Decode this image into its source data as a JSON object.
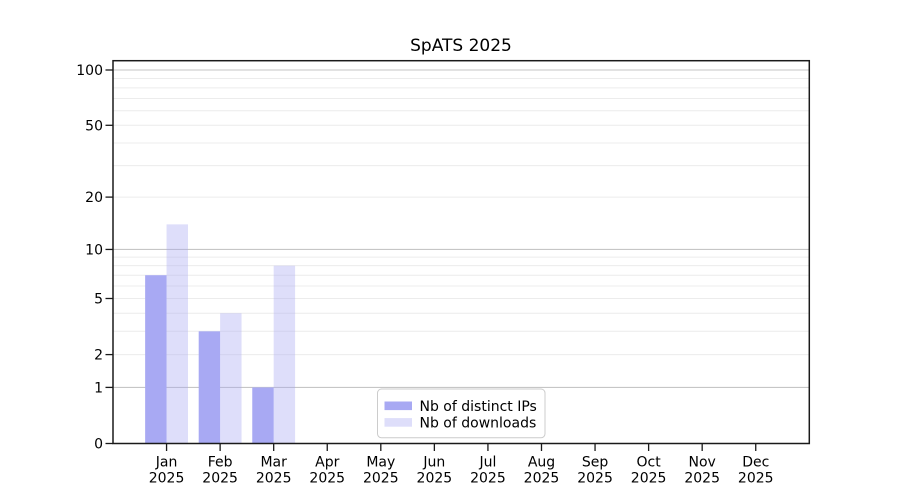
{
  "chart_data": {
    "type": "bar",
    "title": "SpATS 2025",
    "categories": [
      "Jan",
      "Feb",
      "Mar",
      "Apr",
      "May",
      "Jun",
      "Jul",
      "Aug",
      "Sep",
      "Oct",
      "Nov",
      "Dec"
    ],
    "x_tick_year": "2025",
    "series": [
      {
        "name": "Nb of distinct IPs",
        "color": "#a8a9f3",
        "fill_opacity": 1.0,
        "values": [
          7,
          3,
          1,
          0,
          0,
          0,
          0,
          0,
          0,
          0,
          0,
          0
        ]
      },
      {
        "name": "Nb of downloads",
        "color": "#a8a9f3",
        "fill_opacity": 0.38,
        "values": [
          14,
          4,
          8,
          0,
          0,
          0,
          0,
          0,
          0,
          0,
          0,
          0
        ]
      }
    ],
    "y_scale": "log10(1+x)",
    "y_ticks": [
      0,
      1,
      2,
      5,
      10,
      20,
      50,
      100
    ],
    "y_major_gridlines": [
      1,
      10,
      100
    ],
    "y_minor_gridlines": [
      2,
      3,
      4,
      5,
      6,
      7,
      8,
      9,
      20,
      30,
      40,
      50,
      60,
      70,
      80,
      90
    ],
    "ylim": [
      0,
      112
    ],
    "grid": true,
    "legend": {
      "position": "lower center",
      "entries": [
        "Nb of distinct IPs",
        "Nb of downloads"
      ]
    },
    "colors": {
      "bar_dark": "#a8a9f3",
      "bar_light": "#dcddfa",
      "major_gridline": "#c6c6c6",
      "minor_gridline": "#ececec",
      "spine": "#1a1a1a",
      "legend_border": "#cccccc"
    }
  }
}
